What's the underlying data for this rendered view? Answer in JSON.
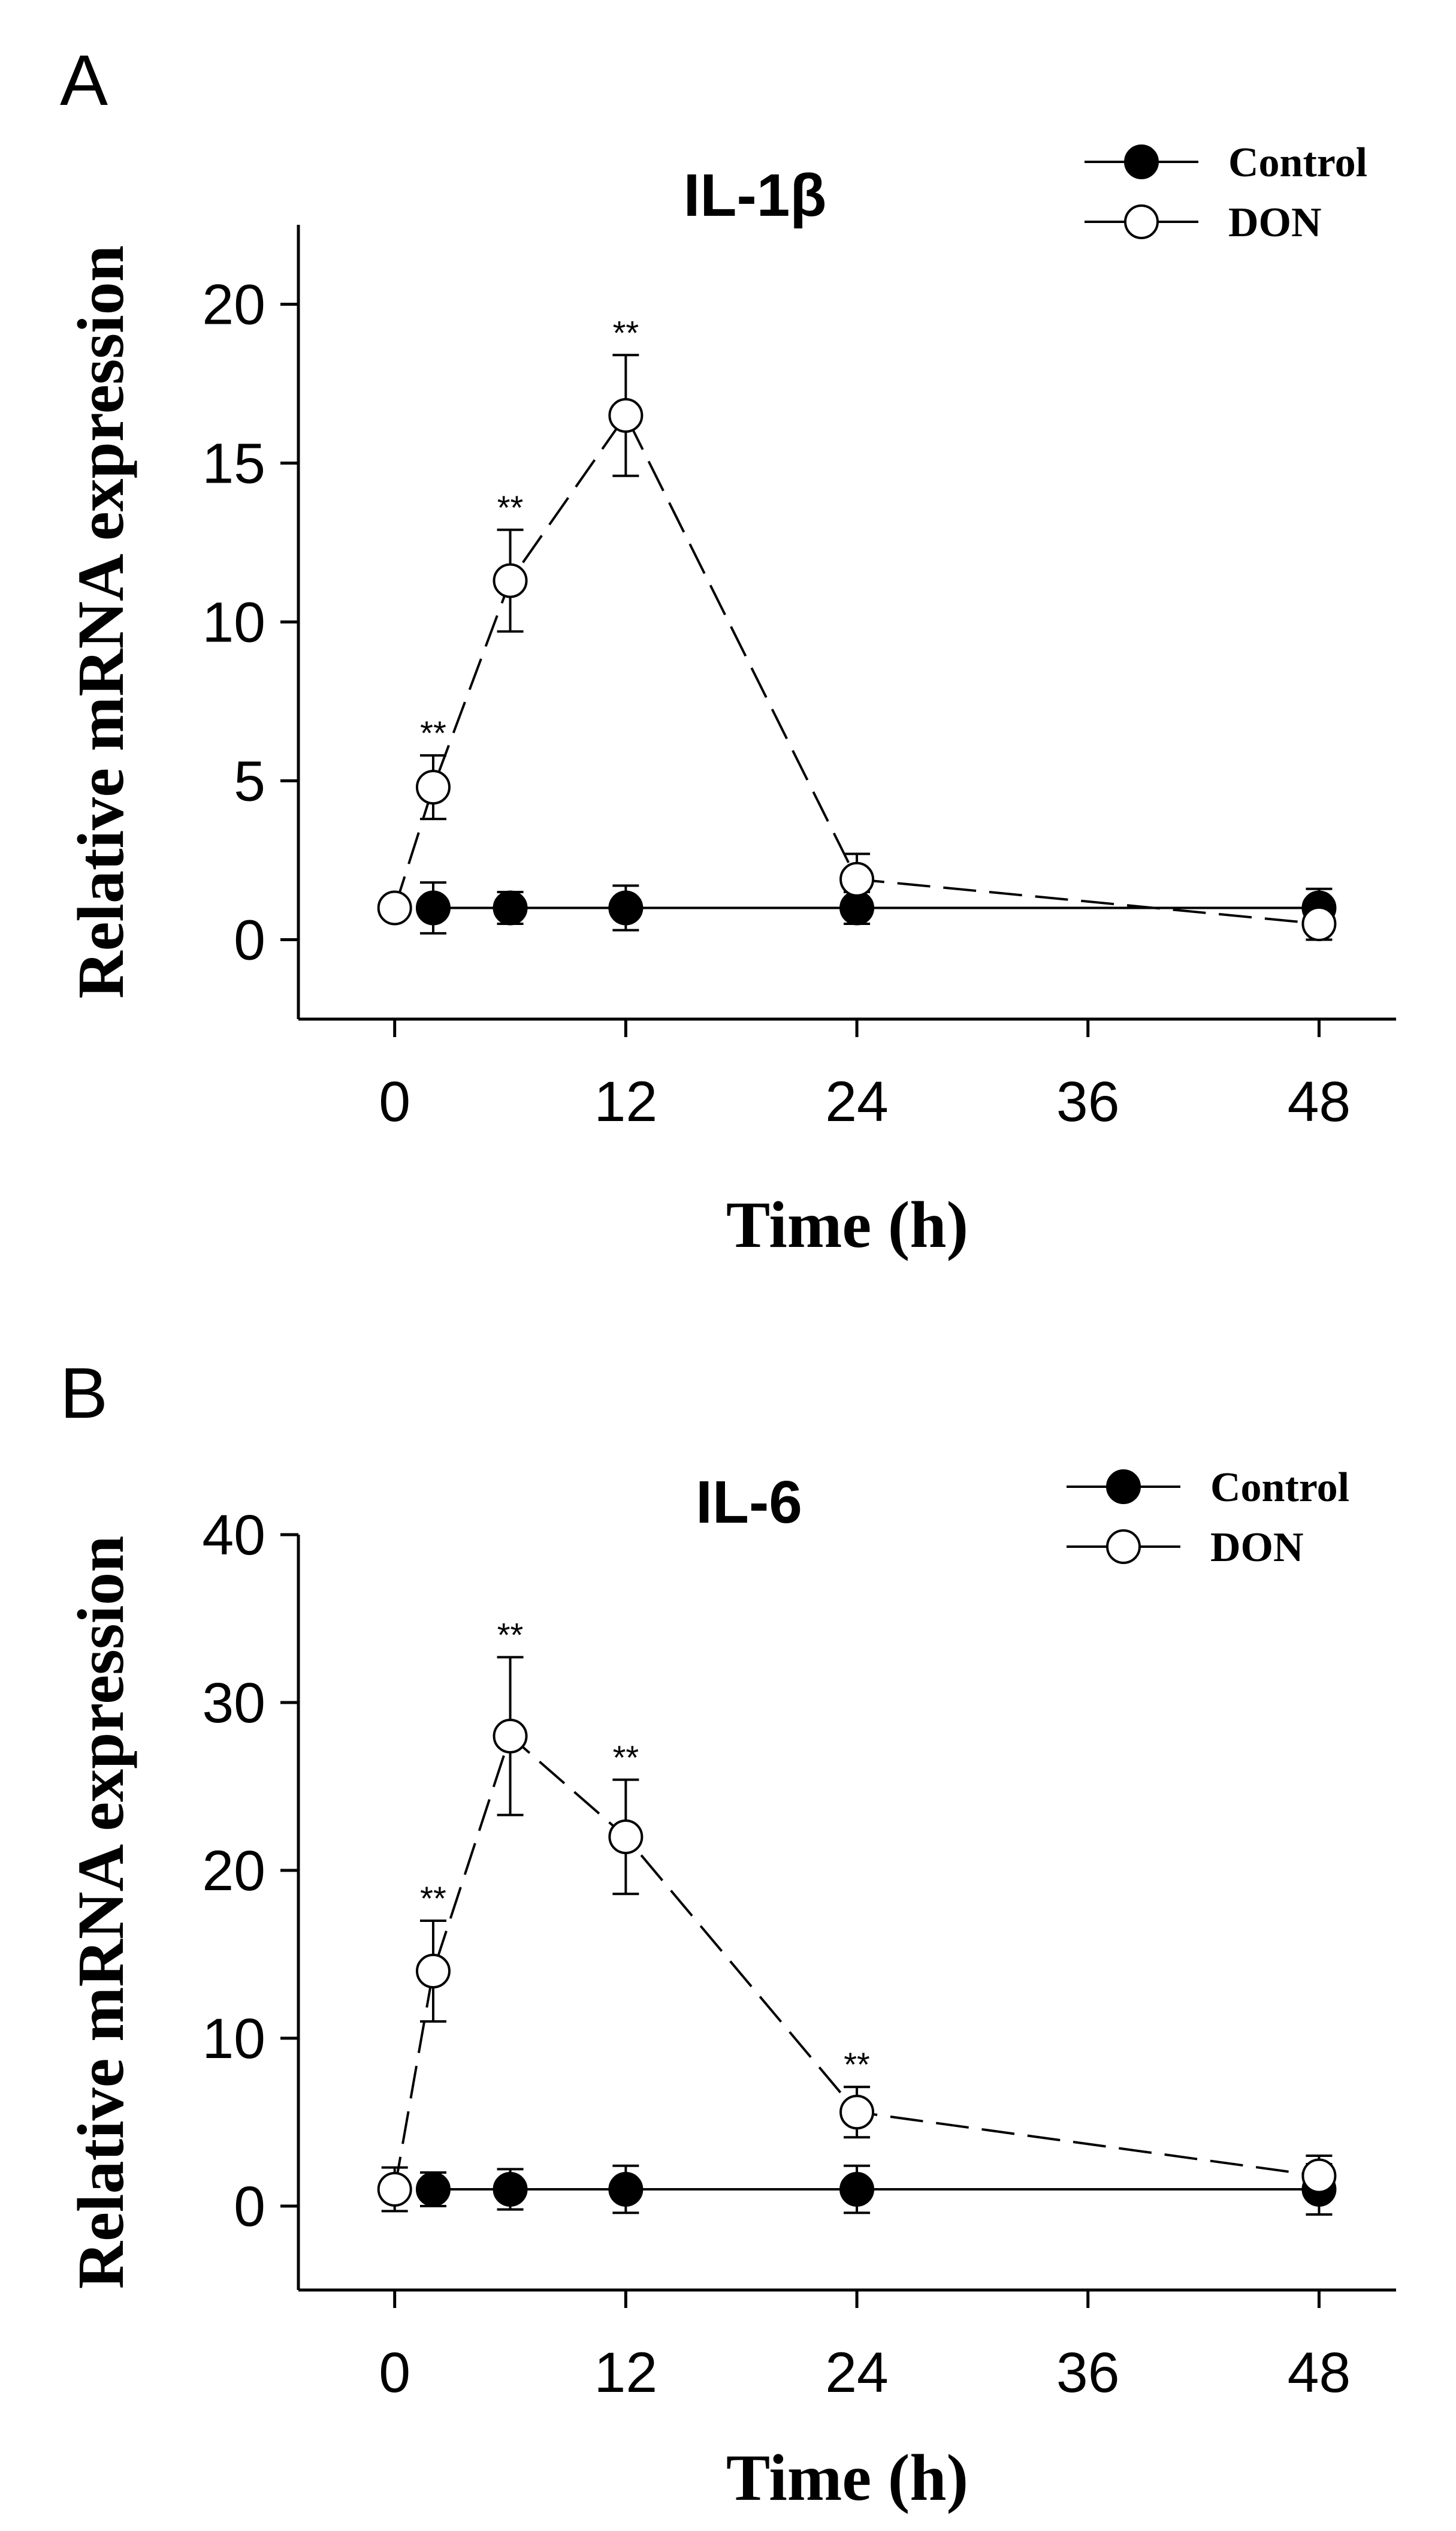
{
  "chart_data": [
    {
      "type": "line",
      "panel": "A",
      "title": "IL-1β",
      "xlabel": "Time (h)",
      "ylabel": "Relative mRNA expression",
      "x_ticks": [
        0,
        12,
        24,
        36,
        48
      ],
      "y_ticks": [
        0,
        5,
        10,
        15,
        20
      ],
      "xlim": [
        -5,
        52
      ],
      "ylim": [
        -2.5,
        22.5
      ],
      "legend": {
        "position": "top-right",
        "entries": [
          "Control",
          "DON"
        ]
      },
      "series": [
        {
          "name": "Control",
          "marker": "filled-circle",
          "line": "solid",
          "x": [
            2,
            6,
            12,
            24,
            48
          ],
          "y": [
            1.0,
            1.0,
            1.0,
            1.0,
            1.0
          ],
          "err": [
            0.8,
            0.5,
            0.7,
            0.5,
            0.6
          ]
        },
        {
          "name": "DON",
          "marker": "open-circle",
          "line": "dashed",
          "x": [
            0,
            2,
            6,
            12,
            24,
            48
          ],
          "y": [
            1.0,
            4.8,
            11.3,
            16.5,
            1.9,
            0.5
          ],
          "err": [
            0,
            1.0,
            1.6,
            1.9,
            0.8,
            0.5
          ],
          "significance": [
            "",
            "**",
            "**",
            "**",
            "",
            ""
          ]
        }
      ]
    },
    {
      "type": "line",
      "panel": "B",
      "title": "IL-6",
      "xlabel": "Time (h)",
      "ylabel": "Relative mRNA expression",
      "x_ticks": [
        0,
        12,
        24,
        36,
        48
      ],
      "y_ticks": [
        0,
        10,
        20,
        30,
        40
      ],
      "xlim": [
        -5,
        52
      ],
      "ylim": [
        -5,
        40
      ],
      "legend": {
        "position": "top-right",
        "entries": [
          "Control",
          "DON"
        ]
      },
      "series": [
        {
          "name": "Control",
          "marker": "filled-circle",
          "line": "solid",
          "x": [
            2,
            6,
            12,
            24,
            48
          ],
          "y": [
            1.0,
            1.0,
            1.0,
            1.0,
            1.0
          ],
          "err": [
            1.0,
            1.2,
            1.4,
            1.4,
            1.5
          ]
        },
        {
          "name": "DON",
          "marker": "open-circle",
          "line": "dashed",
          "x": [
            0,
            2,
            6,
            12,
            24,
            48
          ],
          "y": [
            1.0,
            14.0,
            28.0,
            22.0,
            5.6,
            1.8
          ],
          "err": [
            1.3,
            3.0,
            4.7,
            3.4,
            1.5,
            1.2
          ],
          "significance": [
            "",
            "**",
            "**",
            "**",
            "**",
            ""
          ]
        }
      ]
    }
  ]
}
